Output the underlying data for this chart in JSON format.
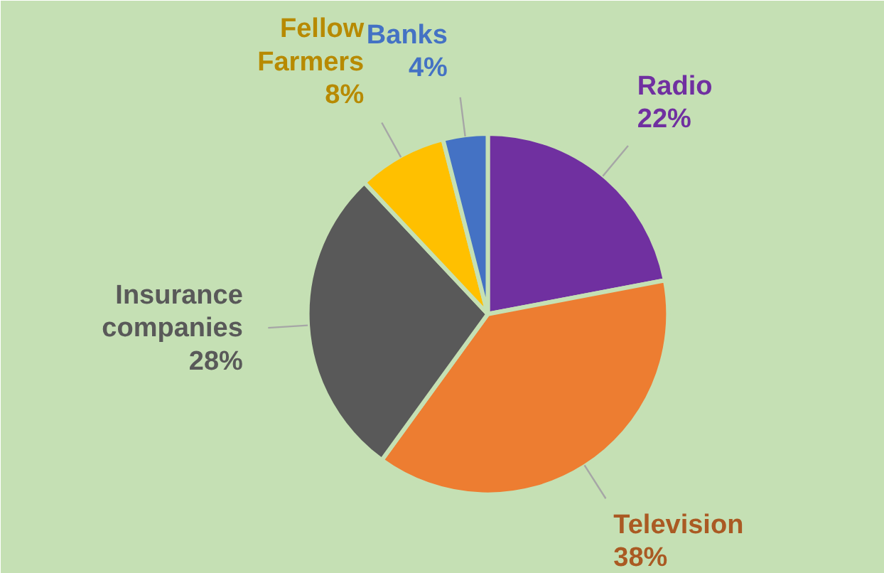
{
  "chart_data": {
    "type": "pie",
    "categories": [
      "Radio",
      "Television",
      "Insurance companies",
      "Fellow Farmers",
      "Banks"
    ],
    "values": [
      22,
      38,
      28,
      8,
      4
    ],
    "colors": [
      "#7030a0",
      "#ed7d31",
      "#595959",
      "#ffc000",
      "#4472c4"
    ],
    "value_labels": [
      "22%",
      "38%",
      "28%",
      "8%",
      "4%"
    ]
  }
}
